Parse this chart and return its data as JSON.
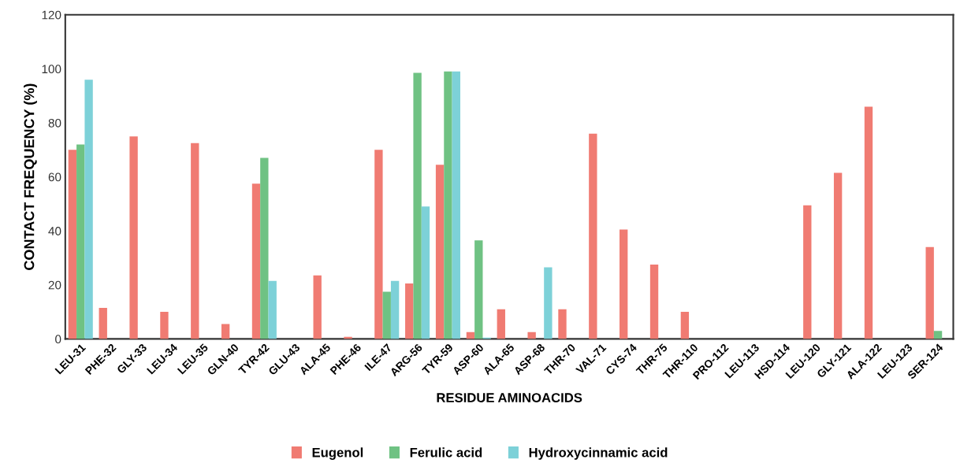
{
  "chart_data": {
    "type": "bar",
    "xlabel": "RESIDUE AMINOACIDS",
    "ylabel": "CONTACT FREQUENCY (%)",
    "categories": [
      "LEU-31",
      "PHE-32",
      "GLY-33",
      "LEU-34",
      "LEU-35",
      "GLN-40",
      "TYR-42",
      "GLU-43",
      "ALA-45",
      "PHE-46",
      "ILE-47",
      "ARG-56",
      "TYR-59",
      "ASP-60",
      "ALA-65",
      "ASP-68",
      "THR-70",
      "VAL-71",
      "CYS-74",
      "THR-75",
      "THR-110",
      "PRO-112",
      "LEU-113",
      "HSD-114",
      "LEU-120",
      "GLY-121",
      "ALA-122",
      "LEU-123",
      "SER-124"
    ],
    "series": [
      {
        "name": "Eugenol",
        "color": "#f07b72",
        "values": [
          70,
          11.5,
          75,
          10,
          72.5,
          5.5,
          57.5,
          0,
          23.5,
          0.8,
          70,
          20.5,
          64.5,
          2.5,
          11,
          2.5,
          11,
          76,
          40.5,
          27.5,
          10,
          0,
          0,
          0,
          49.5,
          61.5,
          86,
          0,
          34
        ]
      },
      {
        "name": "Ferulic acid",
        "color": "#6fc283",
        "values": [
          72,
          0,
          0,
          0,
          0,
          0,
          67,
          0,
          0,
          0,
          17.5,
          98.5,
          99,
          36.5,
          0,
          0,
          0,
          0,
          0,
          0,
          0,
          0,
          0,
          0,
          0,
          0,
          0,
          0,
          3
        ]
      },
      {
        "name": "Hydroxycinnamic acid",
        "color": "#7dd1d8",
        "values": [
          96,
          0,
          0,
          0,
          0,
          0,
          21.5,
          0,
          0,
          0,
          21.5,
          49,
          99,
          0.5,
          0,
          26.5,
          0,
          0,
          0,
          0,
          0,
          0,
          0,
          0,
          0,
          0,
          0,
          0,
          0
        ]
      }
    ],
    "ylim": [
      0,
      120
    ],
    "yticks": [
      0,
      20,
      40,
      60,
      80,
      100,
      120
    ],
    "grid": false,
    "legend": "bottom"
  }
}
